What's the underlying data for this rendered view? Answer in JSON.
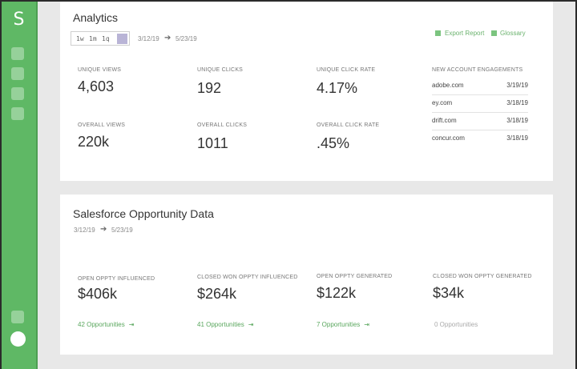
{
  "sidebar": {
    "logo": "S"
  },
  "analytics": {
    "title": "Analytics",
    "range_buttons": [
      "1w",
      "1m",
      "1q"
    ],
    "date_start": "3/12/19",
    "date_end": "5/23/19",
    "arrow": "➔",
    "export_label": "Export Report",
    "glossary_label": "Glossary",
    "metrics": [
      {
        "label": "UNIQUE VIEWS",
        "value": "4,603"
      },
      {
        "label": "UNIQUE CLICKS",
        "value": "192"
      },
      {
        "label": "UNIQUE CLICK RATE",
        "value": "4.17%"
      },
      {
        "label": "OVERALL VIEWS",
        "value": "220k"
      },
      {
        "label": "OVERALL CLICKS",
        "value": "1011"
      },
      {
        "label": "OVERALL CLICK RATE",
        "value": ".45%"
      }
    ],
    "engagements": {
      "title": "NEW ACCOUNT ENGAGEMENTS",
      "rows": [
        {
          "domain": "adobe.com",
          "date": "3/19/19"
        },
        {
          "domain": "ey.com",
          "date": "3/18/19"
        },
        {
          "domain": "drift.com",
          "date": "3/18/19"
        },
        {
          "domain": "concur.com",
          "date": "3/18/19"
        }
      ]
    }
  },
  "salesforce": {
    "title": "Salesforce Opportunity Data",
    "date_start": "3/12/19",
    "date_end": "5/23/19",
    "arrow": "➔",
    "items": [
      {
        "label": "OPEN OPPTY INFLUENCED",
        "value": "$406k",
        "link": "42 Opportunities",
        "link_arrow": "⇥"
      },
      {
        "label": "CLOSED WON OPPTY INFLUENCED",
        "value": "$264k",
        "link": "41 Opportunities",
        "link_arrow": "⇥"
      },
      {
        "label": "OPEN OPPTY GENERATED",
        "value": "$122k",
        "link": "7 Opportunities",
        "link_arrow": "⇥"
      },
      {
        "label": "CLOSED WON OPPTY GENERATED",
        "value": "$34k",
        "link": "0 Opportunities",
        "link_arrow": ""
      }
    ]
  }
}
